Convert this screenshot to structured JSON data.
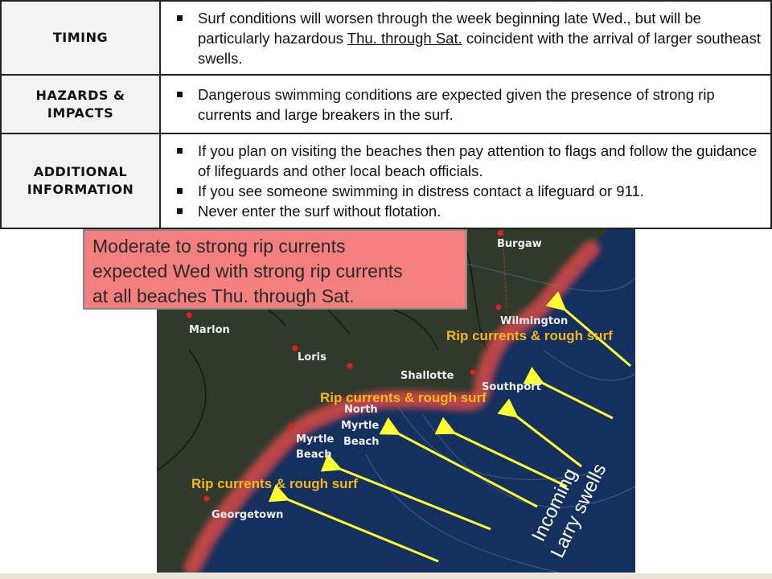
{
  "table": {
    "rows": [
      {
        "label": "TIMING",
        "bullets": [
          {
            "pre": "Surf conditions will worsen through the week beginning late Wed., but will be particularly hazardous ",
            "underlined": "Thu. through Sat.",
            "post": " coincident with the arrival of larger southeast swells."
          }
        ]
      },
      {
        "label_lines": [
          "HAZARDS &",
          "IMPACTS"
        ],
        "bullets": [
          "Dangerous swimming conditions are expected given the presence of strong rip currents and large breakers in the surf."
        ]
      },
      {
        "label_lines": [
          "ADDITIONAL",
          "INFORMATION"
        ],
        "bullets": [
          "If you plan on visiting the beaches then pay attention to flags and follow the guidance of lifeguards and other local beach officials.",
          "If you see someone swimming in distress contact a lifeguard or 911.",
          "Never enter the surf without flotation."
        ]
      }
    ]
  },
  "callout": {
    "lines": [
      "Moderate to strong rip currents",
      "expected Wed with strong rip currents",
      "at all beaches Thu. through Sat."
    ],
    "color": "#f47f7f"
  },
  "map": {
    "cities": [
      "Burgaw",
      "Marlon",
      "Loris",
      "Shallotte",
      "Southport",
      "Wilmington",
      "North",
      "Myrtle",
      "Beach",
      "Myrtle",
      "Beach",
      "Georgetown"
    ],
    "rip_label": "Rip currents & rough surf",
    "swell_lines": [
      "Incoming",
      "Larry swells"
    ],
    "colors": {
      "ocean": "#13305e",
      "land": "#2f3a2c",
      "glow": "#e04848",
      "arrow": "#ffff33",
      "rip_text": "#f2b820"
    }
  }
}
